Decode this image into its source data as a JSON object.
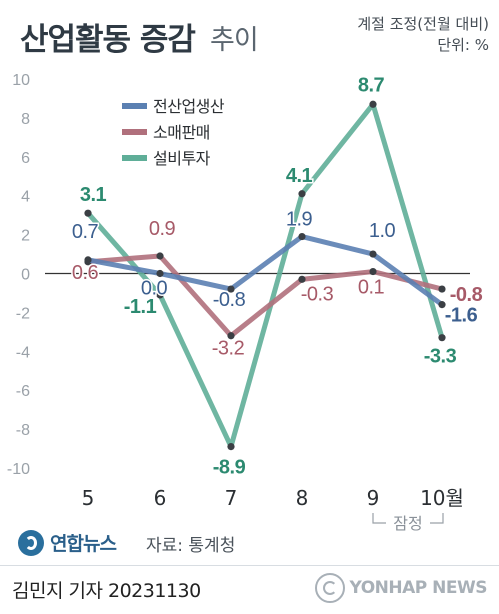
{
  "header": {
    "title": "산업활동 증감",
    "subtitle": "추이",
    "note_line1": "계절 조정(전월 대비)",
    "note_line2": "단위: %"
  },
  "chart_data": {
    "type": "line",
    "categories": [
      "5",
      "6",
      "7",
      "8",
      "9",
      "10월"
    ],
    "ylim": [
      -10,
      10
    ],
    "yticks": [
      "10",
      "8",
      "6",
      "4",
      "2",
      "0",
      "-2",
      "-4",
      "-6",
      "-8",
      "-10"
    ],
    "grid": false,
    "legend_position": "top-left",
    "annotation": "잠정",
    "series": [
      {
        "name": "전산업생산",
        "color": "#5b80b2",
        "label_color": "#3c5f8f",
        "values": [
          0.7,
          0.0,
          -0.8,
          1.9,
          1.0,
          -1.6
        ],
        "labels": [
          "0.7",
          "0.0",
          "-0.8",
          "1.9",
          "1.0",
          "-1.6"
        ]
      },
      {
        "name": "소매판매",
        "color": "#b0707c",
        "label_color": "#a75a68",
        "values": [
          0.6,
          0.9,
          -3.2,
          -0.3,
          0.1,
          -0.8
        ],
        "labels": [
          "0.6",
          "0.9",
          "-3.2",
          "-0.3",
          "0.1",
          "-0.8"
        ]
      },
      {
        "name": "설비투자",
        "color": "#5fae98",
        "label_color": "#2c8a70",
        "values": [
          3.1,
          -1.1,
          -8.9,
          4.1,
          8.7,
          -3.3
        ],
        "labels": [
          "3.1",
          "-1.1",
          "-8.9",
          "4.1",
          "8.7",
          "-3.3"
        ]
      }
    ]
  },
  "footer": {
    "logo_text": "연합뉴스",
    "source": "자료: 통계청",
    "reporter": "김민지 기자  20231130",
    "agency": "YONHAP NEWS"
  }
}
